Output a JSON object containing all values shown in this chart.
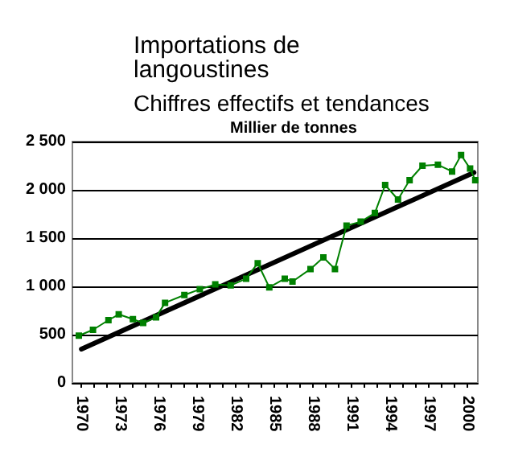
{
  "chart_data": {
    "type": "line",
    "title": "Importations de langoustines",
    "subtitle": "Chiffres effectifs et tendances",
    "ylabel": "Millier de tonnes",
    "xlim": [
      1969.3,
      2000.8
    ],
    "ylim": [
      0,
      2500
    ],
    "yticks": [
      0,
      500,
      {
        "value": 1000,
        "label": "1 000"
      },
      {
        "value": 1500,
        "label": "1 500"
      },
      {
        "value": 2000,
        "label": "2 000"
      },
      {
        "value": 2500,
        "label": "2 500"
      }
    ],
    "xticks": [
      1970,
      {
        "value": 1971,
        "label": null
      },
      {
        "value": 1972,
        "label": null
      },
      1973,
      {
        "value": 1974,
        "label": null
      },
      {
        "value": 1975,
        "label": null
      },
      1976,
      {
        "value": 1977,
        "label": null
      },
      {
        "value": 1978,
        "label": null
      },
      1979,
      {
        "value": 1980,
        "label": null
      },
      {
        "value": 1981,
        "label": null
      },
      1982,
      {
        "value": 1983,
        "label": null
      },
      {
        "value": 1984,
        "label": null
      },
      1985,
      {
        "value": 1986,
        "label": null
      },
      {
        "value": 1987,
        "label": null
      },
      1988,
      {
        "value": 1989,
        "label": null
      },
      {
        "value": 1990,
        "label": null
      },
      1991,
      {
        "value": 1992,
        "label": null
      },
      {
        "value": 1993,
        "label": null
      },
      1994,
      {
        "value": 1995,
        "label": null
      },
      {
        "value": 1996,
        "label": null
      },
      1997,
      {
        "value": 1998,
        "label": null
      },
      {
        "value": 1999,
        "label": null
      },
      2000
    ],
    "grid": "y",
    "series": [
      {
        "color": "#008000",
        "marker": "square",
        "x": [
          1969.8,
          1970.9,
          1972.1,
          1972.9,
          1974,
          1974.8,
          1975.8,
          1976.5,
          1978,
          1979.2,
          1980.4,
          1981.6,
          1982.8,
          1983.7,
          1984.6,
          1985.8,
          1986.4,
          1987.8,
          1988.8,
          1989.7,
          1990.6,
          1991.7,
          1992.8,
          1993.6,
          1994.6,
          1995.5,
          1996.5,
          1997.7,
          1998.8,
          1999.5,
          2000.2,
          2000.6
        ],
        "values": [
          490,
          550,
          650,
          710,
          660,
          620,
          680,
          830,
          910,
          970,
          1020,
          1010,
          1080,
          1240,
          990,
          1080,
          1050,
          1180,
          1300,
          1180,
          1630,
          1670,
          1760,
          2050,
          1900,
          2100,
          2250,
          2260,
          2190,
          2360,
          2220,
          2100
        ]
      },
      {
        "color": "#000000",
        "marker": "none",
        "x": [
          1970,
          2000.5
        ],
        "values": [
          350,
          2180
        ]
      }
    ]
  }
}
